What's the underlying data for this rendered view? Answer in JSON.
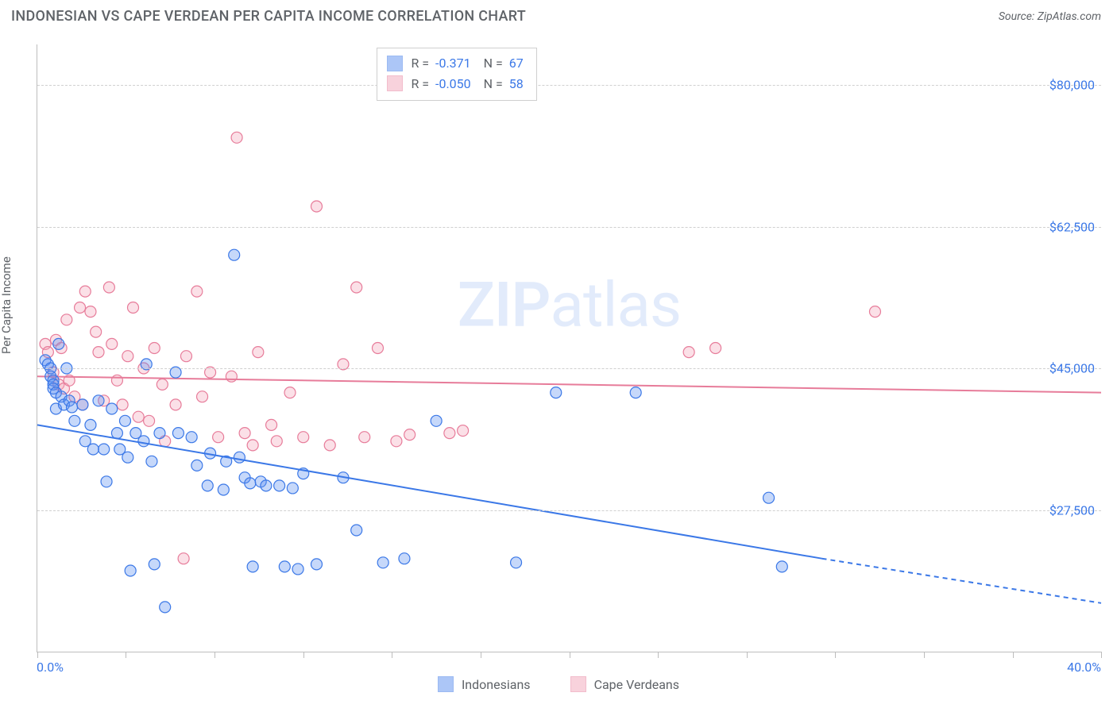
{
  "title": "INDONESIAN VS CAPE VERDEAN PER CAPITA INCOME CORRELATION CHART",
  "source_label": "Source: ZipAtlas.com",
  "ylabel": "Per Capita Income",
  "watermark_zip": "ZIP",
  "watermark_atlas": "atlas",
  "chart": {
    "type": "scatter",
    "background_color": "#ffffff",
    "grid_color": "#d0d0d0",
    "axis_color": "#bdbdbd",
    "text_color": "#5f6368",
    "value_color": "#3b78e7",
    "xlim": [
      0,
      40
    ],
    "ylim": [
      10000,
      85000
    ],
    "x_ticks": [
      0,
      3.33,
      6.67,
      10,
      13.33,
      16.67,
      20,
      23.33,
      26.67,
      30,
      33.33,
      36.67,
      40
    ],
    "x_tick_labels": {
      "0": "0.0%",
      "40": "40.0%"
    },
    "y_grid": [
      27500,
      45000,
      62500,
      80000
    ],
    "y_tick_labels": [
      "$27,500",
      "$45,000",
      "$62,500",
      "$80,000"
    ],
    "marker_radius": 7,
    "marker_fill_opacity": 0.35,
    "line_width": 2,
    "series": [
      {
        "key": "indonesians",
        "label": "Indonesians",
        "color": "#5b8ff0",
        "stroke": "#3b78e7",
        "R": "-0.371",
        "N": "67",
        "trend": {
          "x1": 0,
          "y1": 38000,
          "x2": 29.5,
          "y2": 21500,
          "dash_x2": 40,
          "dash_y2": 16000
        },
        "points": [
          [
            0.3,
            46000
          ],
          [
            0.4,
            45500
          ],
          [
            0.5,
            45000
          ],
          [
            0.5,
            44000
          ],
          [
            0.6,
            43500
          ],
          [
            0.6,
            43000
          ],
          [
            0.6,
            42500
          ],
          [
            0.7,
            42000
          ],
          [
            0.7,
            40000
          ],
          [
            0.8,
            48000
          ],
          [
            0.9,
            41500
          ],
          [
            1.0,
            40500
          ],
          [
            1.1,
            45000
          ],
          [
            1.2,
            41000
          ],
          [
            1.3,
            40200
          ],
          [
            1.4,
            38500
          ],
          [
            1.7,
            40500
          ],
          [
            1.8,
            36000
          ],
          [
            2.0,
            38000
          ],
          [
            2.1,
            35000
          ],
          [
            2.3,
            41000
          ],
          [
            2.5,
            35000
          ],
          [
            2.6,
            31000
          ],
          [
            2.8,
            40000
          ],
          [
            3.0,
            37000
          ],
          [
            3.1,
            35000
          ],
          [
            3.3,
            38500
          ],
          [
            3.4,
            34000
          ],
          [
            3.5,
            20000
          ],
          [
            3.7,
            37000
          ],
          [
            4.0,
            36000
          ],
          [
            4.1,
            45500
          ],
          [
            4.3,
            33500
          ],
          [
            4.4,
            20800
          ],
          [
            4.6,
            37000
          ],
          [
            4.8,
            15500
          ],
          [
            5.2,
            44500
          ],
          [
            5.3,
            37000
          ],
          [
            5.8,
            36500
          ],
          [
            6.0,
            33000
          ],
          [
            6.4,
            30500
          ],
          [
            6.5,
            34500
          ],
          [
            7.0,
            30000
          ],
          [
            7.1,
            33500
          ],
          [
            7.4,
            59000
          ],
          [
            7.6,
            34000
          ],
          [
            7.8,
            31500
          ],
          [
            8.0,
            30800
          ],
          [
            8.1,
            20500
          ],
          [
            8.4,
            31000
          ],
          [
            8.6,
            30500
          ],
          [
            9.1,
            30500
          ],
          [
            9.3,
            20500
          ],
          [
            9.6,
            30200
          ],
          [
            9.8,
            20200
          ],
          [
            10.0,
            32000
          ],
          [
            10.5,
            20800
          ],
          [
            11.5,
            31500
          ],
          [
            12.0,
            25000
          ],
          [
            13.0,
            21000
          ],
          [
            13.8,
            21500
          ],
          [
            15.0,
            38500
          ],
          [
            18.0,
            21000
          ],
          [
            19.5,
            42000
          ],
          [
            22.5,
            42000
          ],
          [
            27.5,
            29000
          ],
          [
            28.0,
            20500
          ]
        ]
      },
      {
        "key": "capeverdeans",
        "label": "Cape Verdeans",
        "color": "#f3a6ba",
        "stroke": "#e77c9a",
        "R": "-0.050",
        "N": "58",
        "trend": {
          "x1": 0,
          "y1": 44000,
          "x2": 40,
          "y2": 42000
        },
        "points": [
          [
            0.3,
            48000
          ],
          [
            0.4,
            47000
          ],
          [
            0.6,
            44500
          ],
          [
            0.7,
            48500
          ],
          [
            0.8,
            43000
          ],
          [
            0.9,
            47500
          ],
          [
            1.0,
            42500
          ],
          [
            1.1,
            51000
          ],
          [
            1.2,
            43500
          ],
          [
            1.4,
            41500
          ],
          [
            1.6,
            52500
          ],
          [
            1.7,
            40500
          ],
          [
            1.8,
            54500
          ],
          [
            2.0,
            52000
          ],
          [
            2.2,
            49500
          ],
          [
            2.3,
            47000
          ],
          [
            2.5,
            41000
          ],
          [
            2.7,
            55000
          ],
          [
            2.8,
            48000
          ],
          [
            3.0,
            43500
          ],
          [
            3.2,
            40500
          ],
          [
            3.4,
            46500
          ],
          [
            3.6,
            52500
          ],
          [
            3.8,
            39000
          ],
          [
            4.0,
            45000
          ],
          [
            4.2,
            38500
          ],
          [
            4.4,
            47500
          ],
          [
            4.7,
            43000
          ],
          [
            4.8,
            36000
          ],
          [
            5.2,
            40500
          ],
          [
            5.5,
            21500
          ],
          [
            5.6,
            46500
          ],
          [
            6.0,
            54500
          ],
          [
            6.2,
            41500
          ],
          [
            6.5,
            44500
          ],
          [
            6.8,
            36500
          ],
          [
            7.3,
            44000
          ],
          [
            7.5,
            73500
          ],
          [
            7.8,
            37000
          ],
          [
            8.1,
            35500
          ],
          [
            8.3,
            47000
          ],
          [
            8.8,
            38000
          ],
          [
            9.0,
            36000
          ],
          [
            9.5,
            42000
          ],
          [
            10.0,
            36500
          ],
          [
            10.5,
            65000
          ],
          [
            11.0,
            35500
          ],
          [
            11.5,
            45500
          ],
          [
            12.0,
            55000
          ],
          [
            12.3,
            36500
          ],
          [
            12.8,
            47500
          ],
          [
            13.5,
            36000
          ],
          [
            14.0,
            36800
          ],
          [
            15.5,
            37000
          ],
          [
            16.0,
            37300
          ],
          [
            24.5,
            47000
          ],
          [
            25.5,
            47500
          ],
          [
            31.5,
            52000
          ]
        ]
      }
    ]
  },
  "legend_labels": {
    "R_prefix": "R =",
    "N_prefix": "N ="
  }
}
